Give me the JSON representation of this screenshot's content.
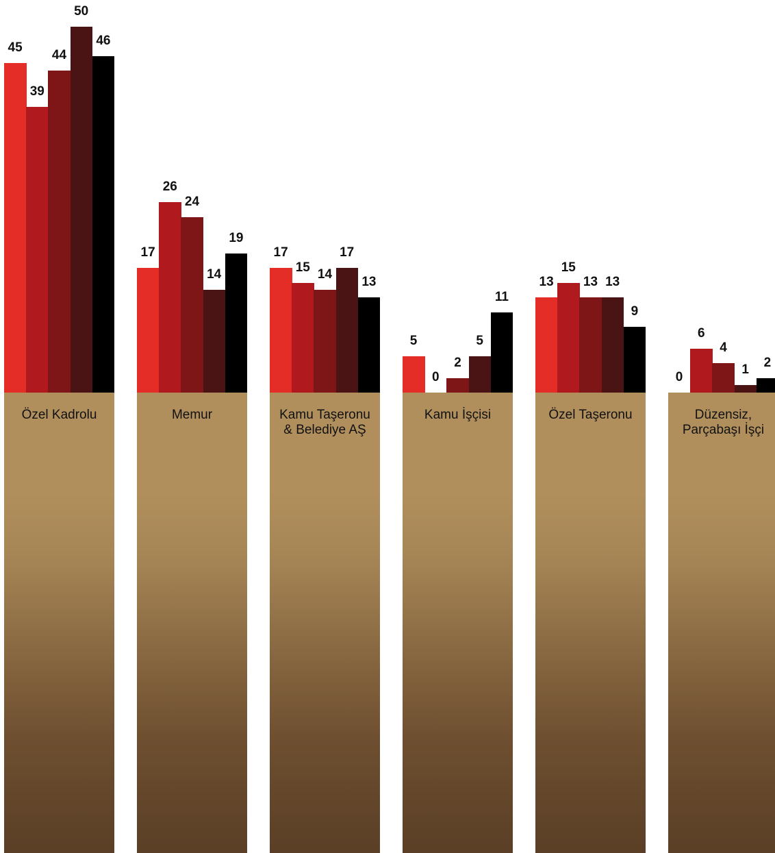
{
  "chart_data": {
    "type": "bar",
    "categories": [
      "Özel Kadrolu",
      "Memur",
      "Kamu Taşeronu & Belediye AŞ",
      "Kamu İşçisi",
      "Özel Taşeronu",
      "Düzensiz, Parçabaşı İşçi"
    ],
    "series": [
      {
        "color": "#e52d27",
        "values": [
          45,
          17,
          17,
          5,
          13,
          0
        ]
      },
      {
        "color": "#b01a1f",
        "values": [
          39,
          26,
          15,
          0,
          15,
          6
        ]
      },
      {
        "color": "#7e1517",
        "values": [
          44,
          24,
          14,
          2,
          13,
          4
        ]
      },
      {
        "color": "#4a1414",
        "values": [
          50,
          14,
          17,
          5,
          13,
          1
        ]
      },
      {
        "color": "#000000",
        "values": [
          46,
          19,
          13,
          11,
          9,
          2
        ]
      }
    ],
    "ylim": [
      0,
      50
    ]
  }
}
